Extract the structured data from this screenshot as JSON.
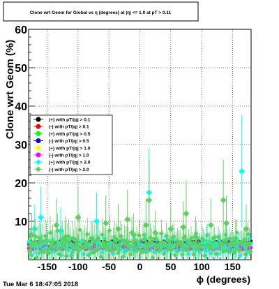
{
  "chart_data": {
    "type": "scatter",
    "title": "Clone wrt Geom for Global vs η (degrees) at |η| <= 1.0 at pT > 0.11",
    "xlabel": "ϕ (degrees)",
    "ylabel": "Clone wrt Geom (%)",
    "xlim": [
      -180,
      180
    ],
    "ylim": [
      0,
      60
    ],
    "x_ticks": [
      -150,
      -100,
      -50,
      0,
      50,
      100,
      150
    ],
    "y_ticks": [
      10,
      20,
      30,
      40,
      50,
      60
    ],
    "grid": true,
    "legend_position": "left-middle",
    "timestamp": "Tue Mar  6 18:47:05 2018",
    "series": [
      {
        "name": "(+) with pT/|q| > 0.1",
        "color": "#000000",
        "marker": "circle",
        "base": 4.3,
        "amp": 0.4,
        "err": 0.6
      },
      {
        "name": "(-) with pT/|q| > 0.1",
        "color": "#ff0000",
        "marker": "circle",
        "base": 4.1,
        "amp": 0.4,
        "err": 0.6
      },
      {
        "name": "(+) with pT/|q| > 0.5",
        "color": "#00ff00",
        "marker": "circle",
        "base": 4.0,
        "amp": 0.5,
        "err": 0.7
      },
      {
        "name": "(-) with pT/|q| > 0.5",
        "color": "#0000ff",
        "marker": "circle",
        "base": 3.8,
        "amp": 0.5,
        "err": 0.7
      },
      {
        "name": "(+) with pT/|q| > 1.0",
        "color": "#ffff00",
        "marker": "circle",
        "base": 3.4,
        "amp": 0.6,
        "err": 0.9
      },
      {
        "name": "(-) with pT/|q| > 1.0",
        "color": "#ff00ff",
        "marker": "circle",
        "base": 3.2,
        "amp": 0.6,
        "err": 0.9
      },
      {
        "name": "(+) with pT/|q| > 2.0",
        "color": "#00ffff",
        "marker": "diamond",
        "base": 3.5,
        "amp": 2.0,
        "err": 3.0,
        "outliers": [
          [
            -160,
            11
          ],
          [
            -128,
            7.5
          ],
          [
            -70,
            10
          ],
          [
            15,
            17.5
          ],
          [
            165,
            23
          ],
          [
            -170,
            8
          ],
          [
            108,
            4.5
          ]
        ]
      },
      {
        "name": "(-) with pT/|q| > 2.0",
        "color": "#5fcf5f",
        "marker": "diamond",
        "base": 4.0,
        "amp": 3.0,
        "err": 4.5,
        "outliers": [
          [
            -135,
            9
          ],
          [
            -100,
            11
          ],
          [
            -55,
            9.5
          ],
          [
            -35,
            8
          ],
          [
            -20,
            10.5
          ],
          [
            10,
            9
          ],
          [
            15,
            15.5
          ],
          [
            25,
            7
          ],
          [
            50,
            8
          ],
          [
            70,
            8.5
          ],
          [
            75,
            12
          ],
          [
            115,
            9
          ],
          [
            135,
            15.5
          ],
          [
            140,
            9.5
          ],
          [
            172,
            8
          ],
          [
            -175,
            6.5
          ],
          [
            -120,
            6
          ],
          [
            -10,
            6.5
          ],
          [
            90,
            6
          ],
          [
            155,
            5.5
          ]
        ]
      }
    ]
  }
}
